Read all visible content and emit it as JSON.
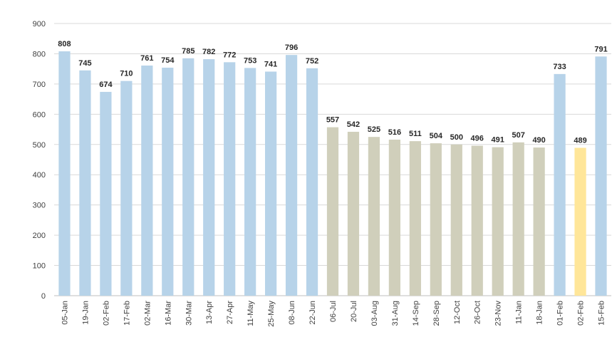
{
  "chart_data": {
    "type": "bar",
    "title": "",
    "xlabel": "",
    "ylabel": "",
    "ylim": [
      0,
      900
    ],
    "yticks": [
      0,
      100,
      200,
      300,
      400,
      500,
      600,
      700,
      800,
      900
    ],
    "grid": true,
    "legend": "none",
    "data_labels": true,
    "categories": [
      "05-Jan",
      "19-Jan",
      "02-Feb",
      "17-Feb",
      "02-Mar",
      "16-Mar",
      "30-Mar",
      "13-Apr",
      "27-Apr",
      "11-May",
      "25-May",
      "08-Jun",
      "22-Jun",
      "06-Jul",
      "20-Jul",
      "03-Aug",
      "31-Aug",
      "14-Sep",
      "28-Sep",
      "12-Oct",
      "26-Oct",
      "23-Nov",
      "11-Jan",
      "18-Jan",
      "01-Feb",
      "02-Feb",
      "15-Feb"
    ],
    "values": [
      808,
      745,
      674,
      710,
      761,
      754,
      785,
      782,
      772,
      753,
      741,
      796,
      752,
      557,
      542,
      525,
      516,
      511,
      504,
      500,
      496,
      491,
      507,
      490,
      733,
      489,
      791
    ],
    "bar_colors": [
      "#b7d3e9",
      "#b7d3e9",
      "#b7d3e9",
      "#b7d3e9",
      "#b7d3e9",
      "#b7d3e9",
      "#b7d3e9",
      "#b7d3e9",
      "#b7d3e9",
      "#b7d3e9",
      "#b7d3e9",
      "#b7d3e9",
      "#b7d3e9",
      "#d0cfbb",
      "#d0cfbb",
      "#d0cfbb",
      "#d0cfbb",
      "#d0cfbb",
      "#d0cfbb",
      "#d0cfbb",
      "#d0cfbb",
      "#d0cfbb",
      "#d0cfbb",
      "#d0cfbb",
      "#b7d3e9",
      "#ffe699",
      "#b7d3e9"
    ]
  }
}
